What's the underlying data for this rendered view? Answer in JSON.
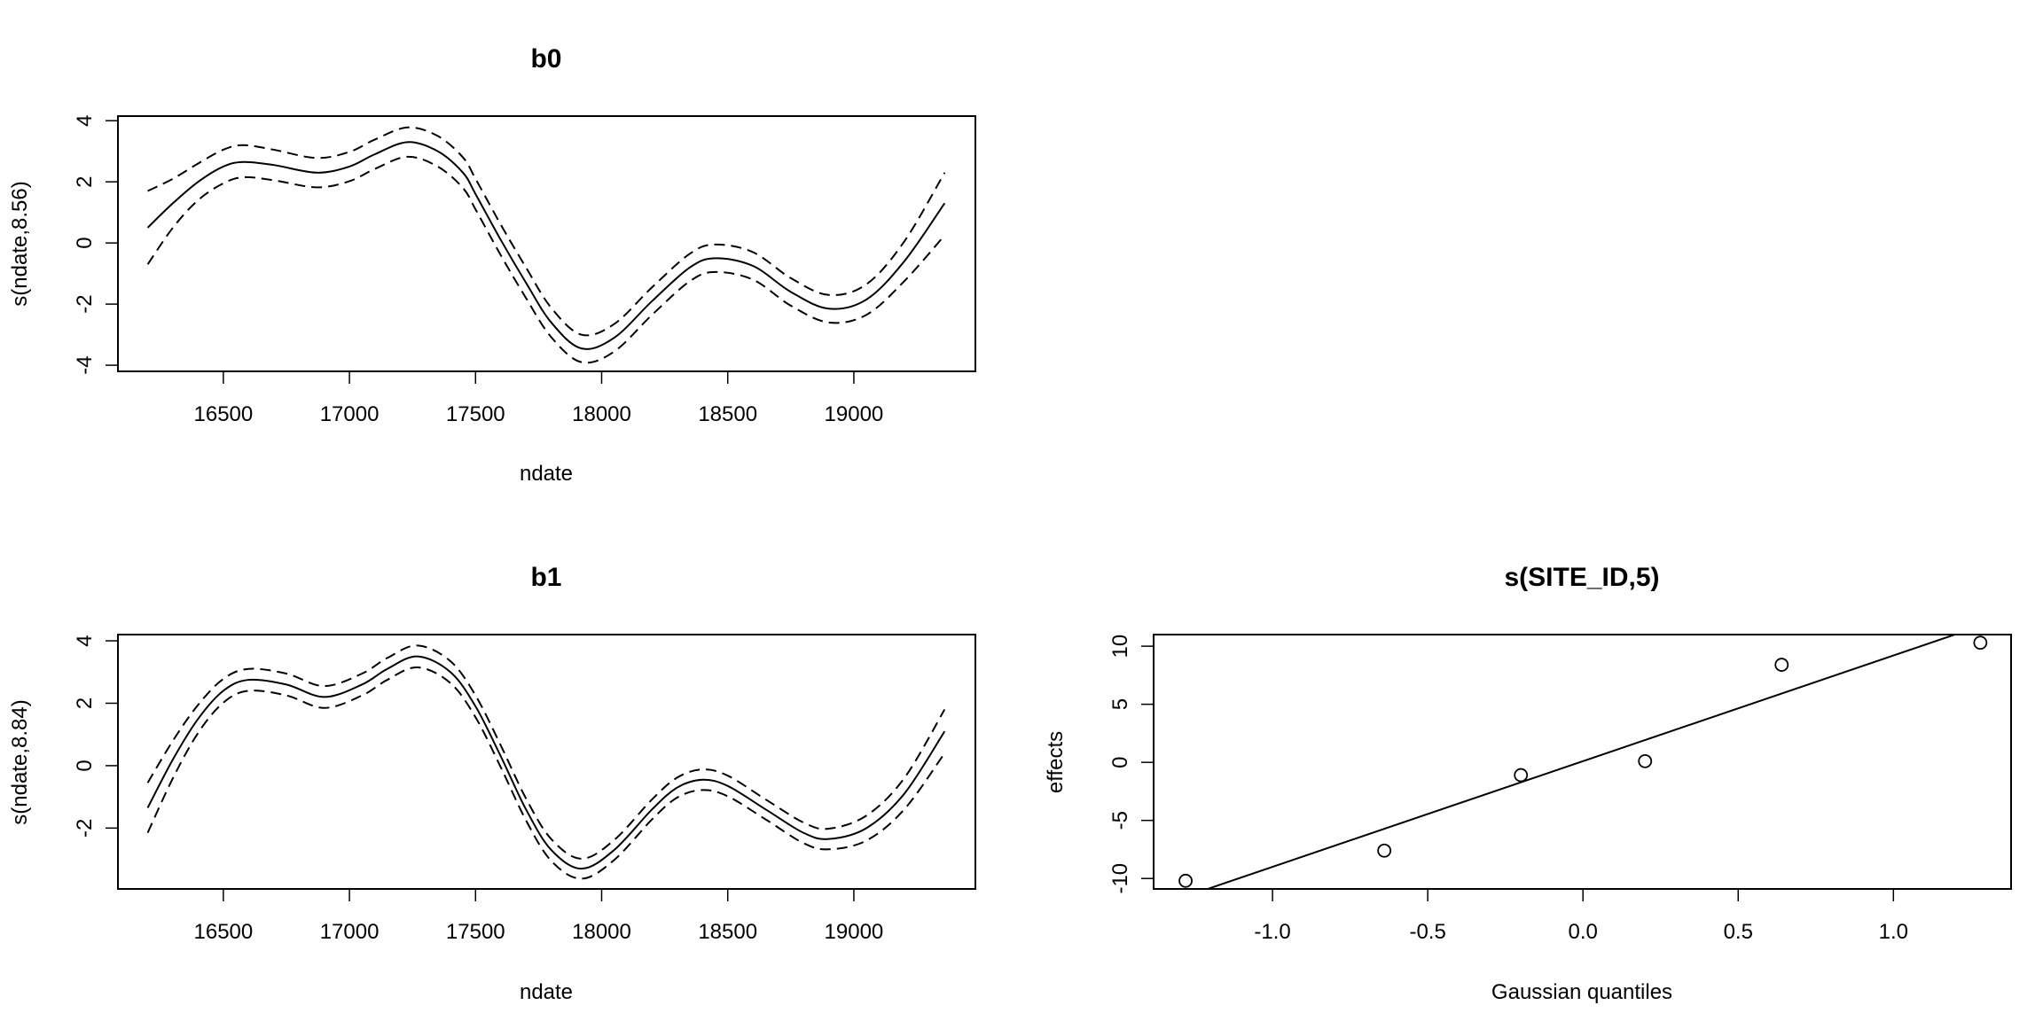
{
  "chart_data": [
    {
      "type": "line",
      "title": "b0",
      "xlabel": "ndate",
      "ylabel": "s(ndate,8.56)",
      "xlim": [
        16082,
        19482
      ],
      "ylim": [
        -4.2,
        4.15
      ],
      "xticks": [
        16500,
        17000,
        17500,
        18000,
        18500,
        19000
      ],
      "yticks": [
        -4,
        -2,
        0,
        2,
        4
      ],
      "x": [
        16200,
        16300,
        16400,
        16500,
        16580,
        16700,
        16870,
        17000,
        17100,
        17230,
        17350,
        17450,
        17500,
        17600,
        17700,
        17800,
        17920,
        18050,
        18200,
        18350,
        18450,
        18600,
        18750,
        18900,
        19050,
        19200,
        19360
      ],
      "fit": [
        0.5,
        1.3,
        2.0,
        2.5,
        2.65,
        2.55,
        2.3,
        2.5,
        2.9,
        3.3,
        3.0,
        2.3,
        1.6,
        0.1,
        -1.3,
        -2.6,
        -3.45,
        -3.1,
        -1.9,
        -0.8,
        -0.5,
        -0.75,
        -1.6,
        -2.15,
        -1.85,
        -0.6,
        1.3
      ],
      "upper": [
        1.7,
        2.1,
        2.6,
        3.05,
        3.2,
        3.05,
        2.78,
        2.98,
        3.38,
        3.78,
        3.5,
        2.8,
        2.1,
        0.6,
        -0.8,
        -2.12,
        -3.0,
        -2.65,
        -1.45,
        -0.35,
        -0.05,
        -0.3,
        -1.15,
        -1.7,
        -1.35,
        0.05,
        2.3
      ],
      "lower": [
        -0.7,
        0.5,
        1.4,
        1.95,
        2.15,
        2.05,
        1.82,
        2.02,
        2.42,
        2.82,
        2.5,
        1.8,
        1.1,
        -0.4,
        -1.8,
        -3.08,
        -3.9,
        -3.55,
        -2.35,
        -1.25,
        -0.95,
        -1.2,
        -2.05,
        -2.6,
        -2.35,
        -1.25,
        0.25
      ]
    },
    {
      "type": "line",
      "title": "b1",
      "xlabel": "ndate",
      "ylabel": "s(ndate,8.84)",
      "xlim": [
        16082,
        19482
      ],
      "ylim": [
        -3.95,
        4.2
      ],
      "xticks": [
        16500,
        17000,
        17500,
        18000,
        18500,
        19000
      ],
      "yticks": [
        -2,
        0,
        2,
        4
      ],
      "x": [
        16200,
        16300,
        16400,
        16500,
        16600,
        16750,
        16900,
        17050,
        17150,
        17270,
        17400,
        17500,
        17600,
        17700,
        17800,
        17920,
        18050,
        18200,
        18300,
        18400,
        18500,
        18650,
        18800,
        18900,
        19050,
        19200,
        19360
      ],
      "fit": [
        -1.35,
        0.2,
        1.5,
        2.4,
        2.75,
        2.6,
        2.2,
        2.6,
        3.1,
        3.5,
        3.0,
        1.9,
        0.3,
        -1.4,
        -2.7,
        -3.3,
        -2.7,
        -1.4,
        -0.7,
        -0.45,
        -0.65,
        -1.4,
        -2.15,
        -2.35,
        -2.0,
        -0.9,
        1.1
      ],
      "upper": [
        -0.55,
        0.8,
        1.95,
        2.78,
        3.1,
        2.95,
        2.55,
        2.95,
        3.45,
        3.85,
        3.35,
        2.25,
        0.65,
        -1.05,
        -2.35,
        -2.98,
        -2.38,
        -1.08,
        -0.38,
        -0.12,
        -0.32,
        -1.08,
        -1.82,
        -2.02,
        -1.6,
        -0.4,
        1.8
      ],
      "lower": [
        -2.15,
        -0.4,
        1.05,
        2.02,
        2.4,
        2.25,
        1.85,
        2.25,
        2.75,
        3.15,
        2.65,
        1.55,
        -0.05,
        -1.75,
        -3.05,
        -3.62,
        -3.02,
        -1.72,
        -1.02,
        -0.78,
        -0.98,
        -1.72,
        -2.48,
        -2.68,
        -2.4,
        -1.4,
        0.4
      ]
    },
    {
      "type": "scatter",
      "title": "s(SITE_ID,5)",
      "xlabel": "Gaussian quantiles",
      "ylabel": "effects",
      "xlim": [
        -1.383,
        1.379
      ],
      "ylim": [
        -10.9,
        11.0
      ],
      "xticks": [
        -1.0,
        -0.5,
        0.0,
        0.5,
        1.0
      ],
      "yticks": [
        -10,
        -5,
        0,
        5,
        10
      ],
      "xtick_labels": [
        "-1.0",
        "-0.5",
        "0.0",
        "0.5",
        "1.0"
      ],
      "points": [
        {
          "x": -1.28,
          "y": -10.2
        },
        {
          "x": -0.64,
          "y": -7.6
        },
        {
          "x": -0.2,
          "y": -1.1
        },
        {
          "x": 0.2,
          "y": 0.1
        },
        {
          "x": 0.64,
          "y": 8.4
        },
        {
          "x": 1.28,
          "y": 10.3
        }
      ],
      "reference_line": {
        "intercept": 0.1,
        "slope": 9.1
      }
    }
  ]
}
